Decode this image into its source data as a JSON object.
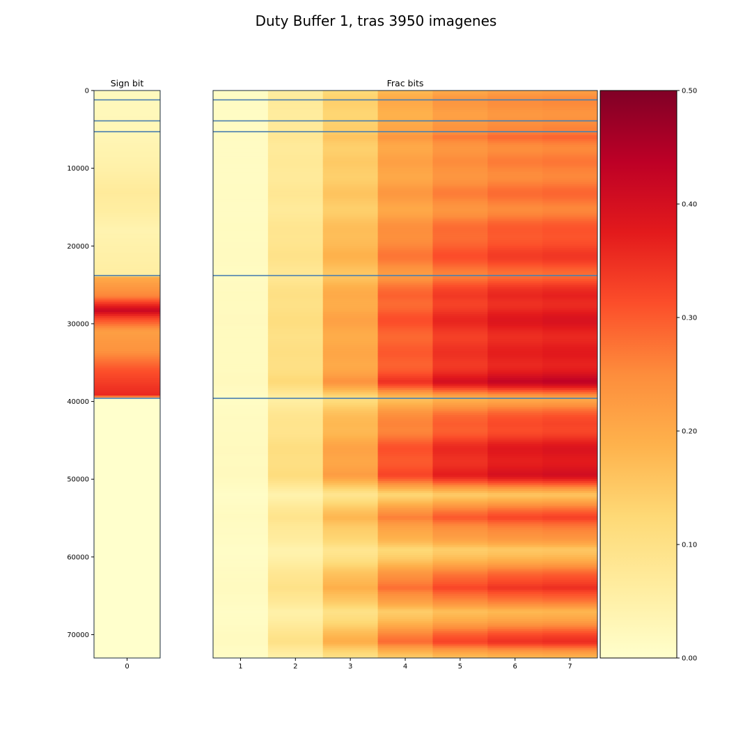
{
  "chart_data": {
    "type": "heatmap",
    "title": "Duty Buffer 1, tras 3950 imagenes",
    "colormap": "YlOrRd",
    "colormap_stops": [
      "#ffffcc",
      "#ffeda0",
      "#fed976",
      "#feb24c",
      "#fd8d3c",
      "#fc4e2a",
      "#e31a1c",
      "#bd0026",
      "#800026"
    ],
    "separator_color": "#4a7fb0",
    "value_range": [
      0,
      0.5
    ],
    "y_range": [
      0,
      73000
    ],
    "y_ticks": [
      0,
      10000,
      20000,
      30000,
      40000,
      50000,
      60000,
      70000
    ],
    "y_tick_labels": [
      "0",
      "10000",
      "20000",
      "30000",
      "40000",
      "50000",
      "60000",
      "70000"
    ],
    "separators_y": [
      1200,
      3900,
      5300,
      23800,
      39600
    ],
    "panels": [
      {
        "name": "sign",
        "title": "Sign bit",
        "x_categories": [
          0
        ],
        "x_tick_labels": [
          "0"
        ]
      },
      {
        "name": "frac",
        "title": "Frac bits",
        "x_categories": [
          1,
          2,
          3,
          4,
          5,
          6,
          7
        ],
        "x_tick_labels": [
          "1",
          "2",
          "3",
          "4",
          "5",
          "6",
          "7"
        ]
      }
    ],
    "sign_bit_profile": [
      [
        0,
        0.02
      ],
      [
        5300,
        0.03
      ],
      [
        10000,
        0.05
      ],
      [
        13000,
        0.07
      ],
      [
        15500,
        0.06
      ],
      [
        18000,
        0.04
      ],
      [
        21000,
        0.05
      ],
      [
        23700,
        0.06
      ],
      [
        24000,
        0.2
      ],
      [
        26500,
        0.26
      ],
      [
        27500,
        0.35
      ],
      [
        28300,
        0.42
      ],
      [
        29200,
        0.33
      ],
      [
        31000,
        0.22
      ],
      [
        33500,
        0.24
      ],
      [
        36000,
        0.31
      ],
      [
        39300,
        0.36
      ],
      [
        39600,
        0.0
      ],
      [
        73000,
        0.0
      ]
    ],
    "frac_bit_value_at_bit7": [
      [
        0,
        0.22
      ],
      [
        5300,
        0.25
      ],
      [
        6000,
        0.3
      ],
      [
        10000,
        0.25
      ],
      [
        14000,
        0.27
      ],
      [
        19500,
        0.32
      ],
      [
        23800,
        0.3
      ],
      [
        26500,
        0.38
      ],
      [
        30500,
        0.36
      ],
      [
        33500,
        0.37
      ],
      [
        37500,
        0.42
      ],
      [
        39600,
        0.2
      ],
      [
        43000,
        0.34
      ],
      [
        46000,
        0.38
      ],
      [
        49500,
        0.38
      ],
      [
        52000,
        0.18
      ],
      [
        55000,
        0.34
      ],
      [
        59000,
        0.14
      ],
      [
        64000,
        0.38
      ],
      [
        67000,
        0.16
      ],
      [
        71000,
        0.36
      ],
      [
        73000,
        0.2
      ]
    ],
    "colorbar_ticks": [
      0.0,
      0.1,
      0.2,
      0.3,
      0.4,
      0.5
    ],
    "colorbar_tick_labels": [
      "0.00",
      "0.10",
      "0.20",
      "0.30",
      "0.40",
      "0.50"
    ]
  }
}
